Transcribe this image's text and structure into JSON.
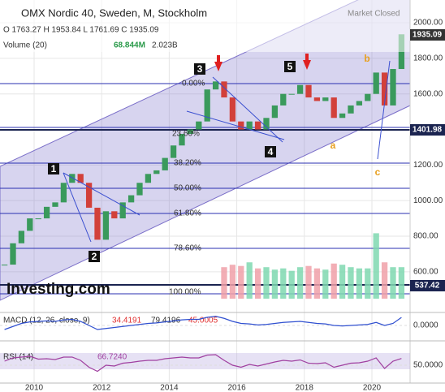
{
  "chart_data": {
    "type": "candlestick",
    "title": "OMX Nordic 40, Sweden, M, Stockholm",
    "status": "Market Closed",
    "ohlc_line": "O 1763.27  H 1953.84  L 1761.69  C 1935.09",
    "volume_label": "Volume (20)",
    "volume_values": [
      "68.844M",
      "2.023B"
    ],
    "macd_label": "MACD (12, 26, close, 9)",
    "macd_values": [
      "34.4191",
      "79.4196",
      "45.0005"
    ],
    "rsi_label": "RSI (14)",
    "rsi_value": "66.7240",
    "logo": "Investing.com",
    "fib_labels": [
      "0.00%",
      "23.60%",
      "38.20%",
      "50.00%",
      "61.80%",
      "78.60%",
      "100.00%"
    ],
    "wave_labels": [
      "1",
      "2",
      "3",
      "4",
      "5"
    ],
    "abc_labels": [
      "a",
      "b",
      "c"
    ],
    "price_labels": [
      "1935.09",
      "1401.98",
      "537.42"
    ],
    "up_color": "#3a9a5c",
    "down_color": "#d2403a",
    "x": [
      2009,
      2009.25,
      2009.5,
      2009.75,
      2010,
      2010.25,
      2010.5,
      2010.75,
      2011,
      2011.25,
      2011.5,
      2011.75,
      2012,
      2012.25,
      2012.5,
      2012.75,
      2013,
      2013.25,
      2013.5,
      2013.75,
      2014,
      2014.25,
      2014.5,
      2014.75,
      2015,
      2015.25,
      2015.5,
      2015.75,
      2016,
      2016.25,
      2016.5,
      2016.75,
      2017,
      2017.25,
      2017.5,
      2017.75,
      2018,
      2018.25,
      2018.5,
      2018.75,
      2019,
      2019.25,
      2019.5,
      2019.75,
      2020,
      2020.25,
      2020.5,
      2020.75
    ],
    "values": [
      640,
      760,
      830,
      900,
      900,
      965,
      990,
      1100,
      1150,
      1100,
      960,
      780,
      940,
      900,
      990,
      1030,
      1100,
      1150,
      1170,
      1240,
      1310,
      1375,
      1400,
      1445,
      1625,
      1670,
      1580,
      1445,
      1400,
      1445,
      1400,
      1465,
      1535,
      1600,
      1600,
      1650,
      1580,
      1560,
      1580,
      1465,
      1490,
      1535,
      1560,
      1600,
      1720,
      1535,
      1740,
      1935.09
    ],
    "volume": [
      null,
      null,
      null,
      null,
      null,
      null,
      null,
      null,
      null,
      null,
      null,
      null,
      null,
      null,
      null,
      null,
      null,
      null,
      null,
      null,
      null,
      null,
      null,
      null,
      null,
      null,
      2600,
      2800,
      2700,
      3000,
      2500,
      2600,
      2400,
      2500,
      2300,
      2600,
      2700,
      2500,
      2400,
      2900,
      2800,
      2600,
      2500,
      2500,
      5400,
      3000,
      2600,
      2600
    ],
    "macd": [
      -40,
      -10,
      20,
      35,
      40,
      45,
      40,
      55,
      60,
      40,
      0,
      -40,
      -30,
      -20,
      -10,
      0,
      10,
      20,
      25,
      35,
      45,
      55,
      60,
      60,
      80,
      90,
      70,
      40,
      20,
      15,
      5,
      10,
      20,
      30,
      35,
      40,
      30,
      20,
      15,
      0,
      -5,
      0,
      5,
      10,
      30,
      0,
      20,
      79
    ],
    "rsi": [
      60,
      68,
      70,
      72,
      65,
      66,
      64,
      70,
      70,
      62,
      45,
      35,
      50,
      48,
      55,
      57,
      60,
      62,
      62,
      66,
      68,
      70,
      68,
      68,
      75,
      76,
      62,
      50,
      45,
      52,
      48,
      53,
      58,
      62,
      60,
      63,
      55,
      54,
      56,
      45,
      50,
      55,
      56,
      60,
      68,
      42,
      60,
      66.724
    ],
    "xlim": [
      2009,
      2021.13
    ],
    "xticks": [
      2010,
      2012,
      2014,
      2016,
      2018,
      2020
    ],
    "ylim": [
      371,
      2128
    ],
    "yticks": [
      {
        "value": 2000,
        "label": "2000.00"
      },
      {
        "value": 1800,
        "label": "1800.00"
      },
      {
        "value": 1600,
        "label": "1600.00"
      },
      {
        "value": 1400,
        "label": "1400.00"
      },
      {
        "value": 1200,
        "label": "1200.00"
      },
      {
        "value": 1000,
        "label": "1000.00"
      },
      {
        "value": 800,
        "label": "800.00"
      },
      {
        "value": 600,
        "label": "600.00"
      }
    ],
    "macd_ylim": [
      -120,
      120
    ],
    "macd_yticks": [
      {
        "value": 0,
        "label": "0.0000"
      }
    ],
    "rsi_ylim": [
      0,
      100
    ],
    "rsi_yticks": [
      {
        "value": 50,
        "label": "50.0000"
      }
    ],
    "grid": true
  }
}
